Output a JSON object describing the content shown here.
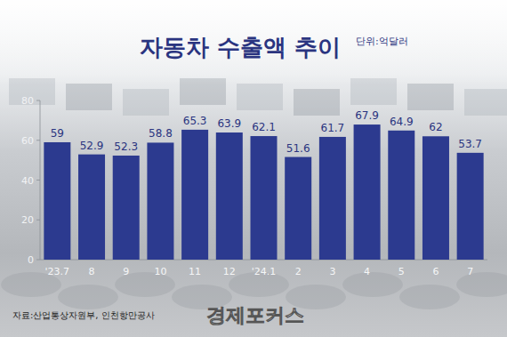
{
  "chart_data": {
    "type": "bar",
    "title": "자동차 수출액 추이",
    "annotations": [
      "단위:억달러",
      "자료:산업통상자원부, 인천항만공사",
      "경제포커스"
    ],
    "categories": [
      "'23.7",
      "8",
      "9",
      "10",
      "11",
      "12",
      "'24.1",
      "2",
      "3",
      "4",
      "5",
      "6",
      "7"
    ],
    "values": [
      59,
      52.9,
      52.3,
      58.8,
      65.3,
      63.9,
      62.1,
      51.6,
      61.7,
      67.9,
      64.9,
      62,
      53.7
    ],
    "color": "#2c3a8f",
    "ylim": [
      0,
      80
    ],
    "yticks": [
      0,
      20,
      40,
      60,
      80
    ],
    "grid": false,
    "data_labels": true
  }
}
